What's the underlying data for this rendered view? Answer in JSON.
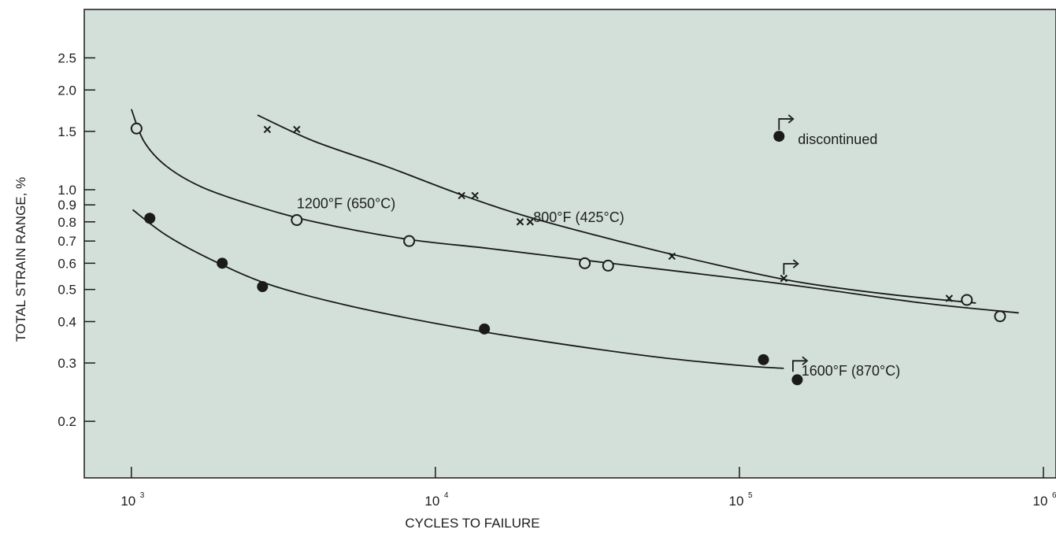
{
  "chart_data": {
    "type": "scatter",
    "xscale": "log",
    "yscale": "log",
    "xlabel": "CYCLES TO FAILURE",
    "ylabel": "TOTAL STRAIN RANGE, %",
    "xlim": [
      700,
      1100000
    ],
    "ylim": [
      0.135,
      3.5
    ],
    "grid": false,
    "x_ticks": [
      {
        "value": 1000,
        "base": "10",
        "exp": "3"
      },
      {
        "value": 10000,
        "base": "10",
        "exp": "4"
      },
      {
        "value": 100000,
        "base": "10",
        "exp": "5"
      },
      {
        "value": 1000000,
        "base": "10",
        "exp": "6"
      }
    ],
    "y_ticks": [
      {
        "value": 2.5,
        "label": "2.5"
      },
      {
        "value": 2.0,
        "label": "2.0"
      },
      {
        "value": 1.5,
        "label": "1.5"
      },
      {
        "value": 1.0,
        "label": "1.0"
      },
      {
        "value": 0.9,
        "label": "0.9"
      },
      {
        "value": 0.8,
        "label": "0.8"
      },
      {
        "value": 0.7,
        "label": "0.7"
      },
      {
        "value": 0.6,
        "label": "0.6"
      },
      {
        "value": 0.5,
        "label": "0.5"
      },
      {
        "value": 0.4,
        "label": "0.4"
      },
      {
        "value": 0.3,
        "label": "0.3"
      },
      {
        "value": 0.2,
        "label": "0.2"
      }
    ],
    "series": [
      {
        "name": "800°F (425°C)",
        "marker": "x",
        "points": [
          {
            "x": 2800,
            "y": 1.52
          },
          {
            "x": 3500,
            "y": 1.52
          },
          {
            "x": 12200,
            "y": 0.96
          },
          {
            "x": 13500,
            "y": 0.96
          },
          {
            "x": 19000,
            "y": 0.8
          },
          {
            "x": 20500,
            "y": 0.8
          },
          {
            "x": 60000,
            "y": 0.63
          },
          {
            "x": 140000,
            "y": 0.54
          },
          {
            "x": 490000,
            "y": 0.47
          }
        ],
        "fit": [
          {
            "x": 2600,
            "y": 1.68
          },
          {
            "x": 4000,
            "y": 1.4
          },
          {
            "x": 7000,
            "y": 1.17
          },
          {
            "x": 12000,
            "y": 0.97
          },
          {
            "x": 20000,
            "y": 0.83
          },
          {
            "x": 40000,
            "y": 0.7
          },
          {
            "x": 80000,
            "y": 0.6
          },
          {
            "x": 150000,
            "y": 0.53
          },
          {
            "x": 300000,
            "y": 0.485
          },
          {
            "x": 600000,
            "y": 0.455
          }
        ],
        "label_pos": {
          "x": 21000,
          "y": 0.8
        }
      },
      {
        "name": "1200°F (650°C)",
        "marker": "open-circle",
        "points": [
          {
            "x": 1040,
            "y": 1.53
          },
          {
            "x": 3500,
            "y": 0.81
          },
          {
            "x": 8200,
            "y": 0.7
          },
          {
            "x": 31000,
            "y": 0.6
          },
          {
            "x": 37000,
            "y": 0.59
          },
          {
            "x": 560000,
            "y": 0.465
          },
          {
            "x": 720000,
            "y": 0.415
          }
        ],
        "fit": [
          {
            "x": 1000,
            "y": 1.75
          },
          {
            "x": 1100,
            "y": 1.4
          },
          {
            "x": 1300,
            "y": 1.18
          },
          {
            "x": 1700,
            "y": 1.02
          },
          {
            "x": 2500,
            "y": 0.9
          },
          {
            "x": 4000,
            "y": 0.8
          },
          {
            "x": 8000,
            "y": 0.71
          },
          {
            "x": 15000,
            "y": 0.665
          },
          {
            "x": 30000,
            "y": 0.615
          },
          {
            "x": 60000,
            "y": 0.57
          },
          {
            "x": 150000,
            "y": 0.515
          },
          {
            "x": 400000,
            "y": 0.455
          },
          {
            "x": 830000,
            "y": 0.425
          }
        ],
        "label_pos": {
          "x": 3500,
          "y": 0.88
        }
      },
      {
        "name": "1600°F (870°C)",
        "marker": "filled-circle",
        "points": [
          {
            "x": 1150,
            "y": 0.82
          },
          {
            "x": 1990,
            "y": 0.6
          },
          {
            "x": 2700,
            "y": 0.51
          },
          {
            "x": 14500,
            "y": 0.38
          },
          {
            "x": 120000,
            "y": 0.307
          },
          {
            "x": 155000,
            "y": 0.267
          }
        ],
        "fit": [
          {
            "x": 1010,
            "y": 0.87
          },
          {
            "x": 1300,
            "y": 0.73
          },
          {
            "x": 1800,
            "y": 0.62
          },
          {
            "x": 2800,
            "y": 0.52
          },
          {
            "x": 5000,
            "y": 0.45
          },
          {
            "x": 10000,
            "y": 0.395
          },
          {
            "x": 20000,
            "y": 0.355
          },
          {
            "x": 50000,
            "y": 0.315
          },
          {
            "x": 100000,
            "y": 0.295
          },
          {
            "x": 140000,
            "y": 0.289
          }
        ],
        "label_pos": {
          "x": 160000,
          "y": 0.275
        }
      }
    ],
    "discontinued_markers": [
      {
        "x": 135000,
        "y": 1.45,
        "marker": "filled-circle",
        "label": "discontinued"
      },
      {
        "x": 140000,
        "y": 0.53,
        "marker": "none",
        "label": ""
      },
      {
        "x": 150000,
        "y": 0.27,
        "marker": "none",
        "label": ""
      }
    ],
    "colors": {
      "plot_background": "#d3e0da",
      "page_background": "#ffffff",
      "ink": "#1a1a1a"
    }
  }
}
